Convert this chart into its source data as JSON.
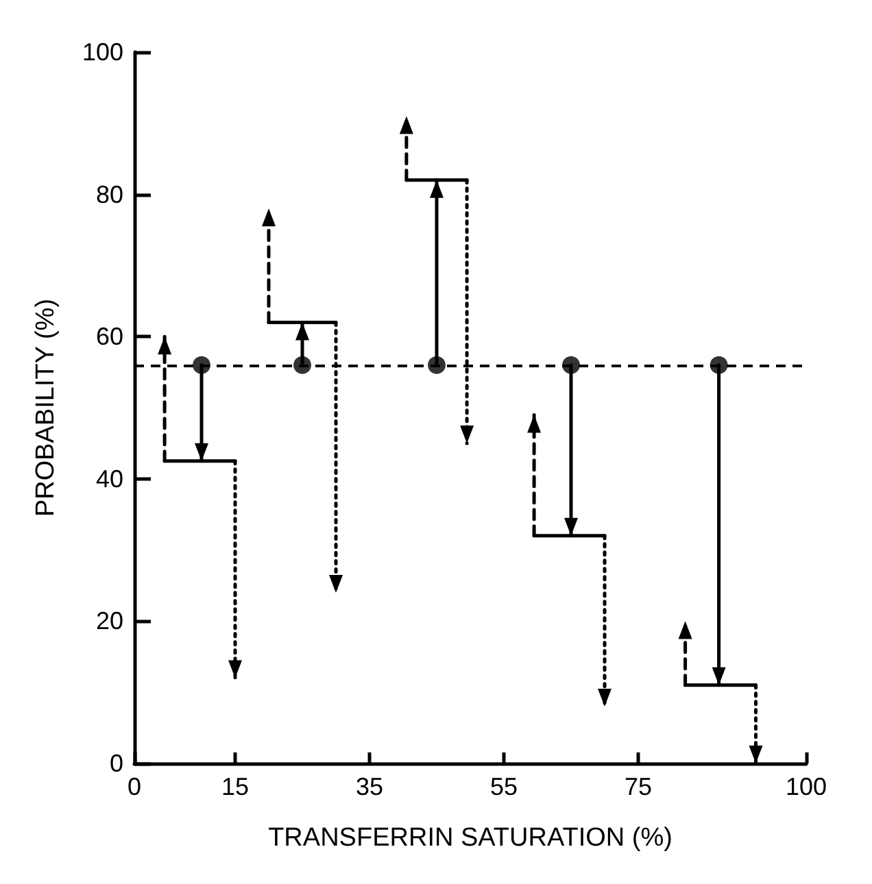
{
  "chart_data": {
    "type": "scatter",
    "xlabel": "TRANSFERRIN SATURATION (%)",
    "ylabel": "PROBABILITY (%)",
    "xlim": [
      0,
      100
    ],
    "xticks": [
      0,
      15,
      35,
      55,
      75,
      100
    ],
    "ylim": [
      0,
      100
    ],
    "yticks": [
      0,
      20,
      40,
      60,
      80,
      100
    ],
    "grid": false,
    "ref_lines": [
      {
        "axis": "y",
        "value": 56,
        "line_style": "dashed",
        "color": "#000000"
      }
    ],
    "series": [
      {
        "type": "line",
        "line_style": "solid",
        "marker": "none",
        "color": "#000000",
        "x": [
          10,
          10,
          null,
          25,
          25,
          null,
          45,
          45,
          null,
          65,
          65,
          null,
          87,
          87
        ],
        "values": [
          56,
          42.5,
          null,
          56,
          62,
          null,
          56,
          82,
          null,
          56,
          32,
          null,
          56,
          11
        ]
      },
      {
        "type": "line",
        "line_style": "solid",
        "marker": "none",
        "color": "#000000",
        "x": [
          4.5,
          15,
          null,
          20,
          30,
          null,
          40.5,
          49.5,
          null,
          59.5,
          70,
          null,
          82,
          92.5
        ],
        "values": [
          42.5,
          42.5,
          null,
          62,
          62,
          null,
          82,
          82,
          null,
          32,
          32,
          null,
          11,
          11
        ]
      },
      {
        "type": "line",
        "line_style": "dashed",
        "marker": "none",
        "color": "#000000",
        "x": [
          4.5,
          4.5,
          null,
          20,
          20,
          null,
          40.5,
          40.5,
          null,
          59.5,
          59.5,
          null,
          82,
          82
        ],
        "values": [
          42.5,
          60,
          null,
          62,
          78,
          null,
          82,
          91,
          null,
          32,
          49,
          null,
          11,
          20
        ]
      },
      {
        "type": "line",
        "line_style": "dotted",
        "marker": "none",
        "color": "#000000",
        "x": [
          15,
          15,
          null,
          30,
          30,
          null,
          49.5,
          49.5,
          null,
          70,
          70,
          null,
          92.5,
          92.5
        ],
        "values": [
          42.5,
          12,
          null,
          62,
          24,
          null,
          82,
          45,
          null,
          32,
          8,
          null,
          11,
          0
        ]
      },
      {
        "type": "scatter",
        "marker": "circle",
        "color": "#000000",
        "x": [
          10,
          25,
          45,
          65,
          87
        ],
        "values": [
          56,
          56,
          56,
          56,
          56
        ]
      }
    ]
  }
}
